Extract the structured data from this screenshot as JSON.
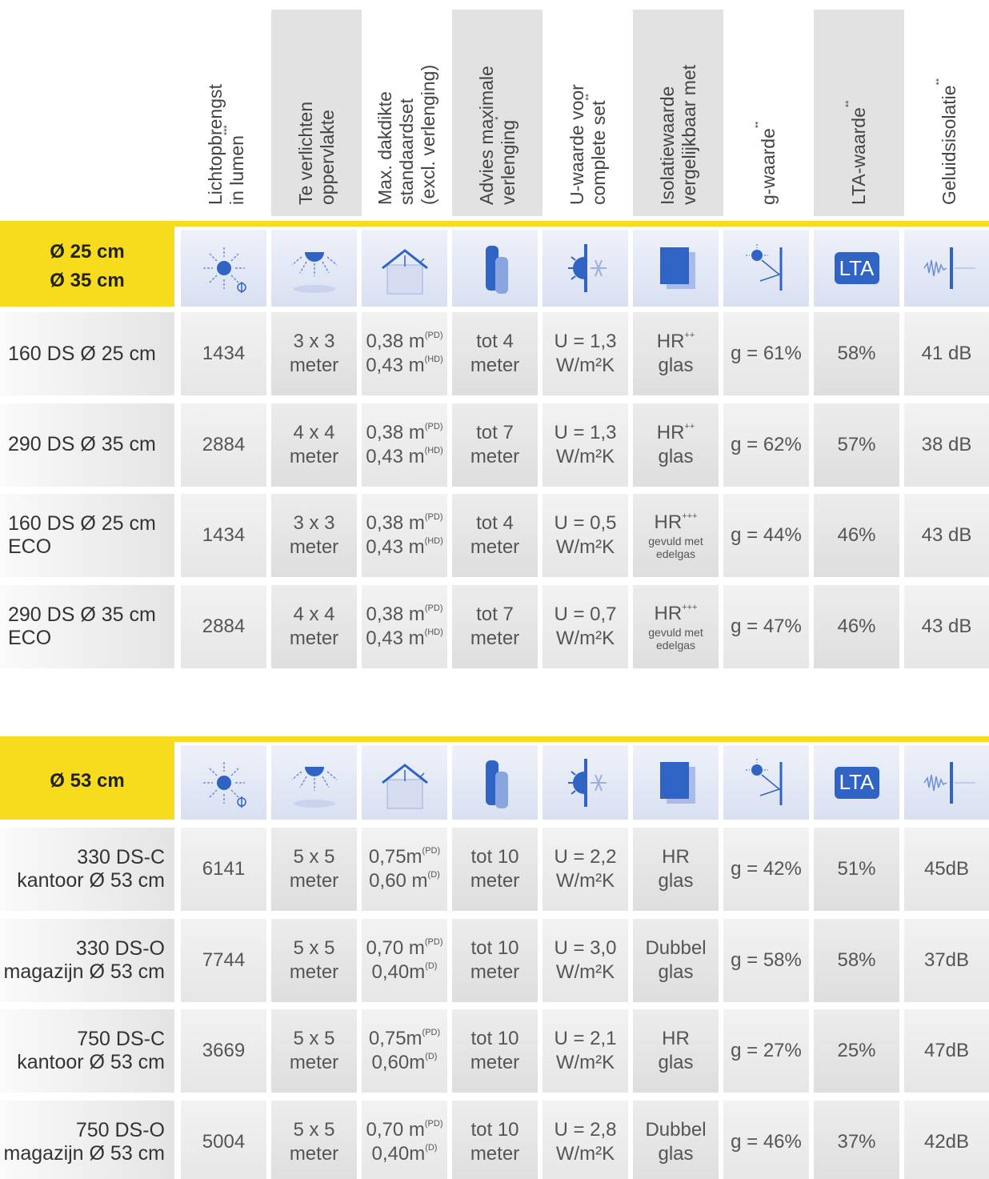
{
  "header": {
    "columns": [
      {
        "lines": [
          "Lichtopbrengst",
          "in lumen"
        ],
        "sup": "***"
      },
      {
        "lines": [
          "Te verlichten",
          "oppervlakte"
        ]
      },
      {
        "lines": [
          "Max. dakdikte",
          "standaardset",
          "(excl. verlenging)"
        ]
      },
      {
        "lines": [
          "Advies maximale",
          "verlenging"
        ],
        "sup": "*"
      },
      {
        "lines": [
          "U-waarde voor",
          "complete set"
        ],
        "sup": "**"
      },
      {
        "lines": [
          "Isolatiewaarde",
          "vergelijkbaar met"
        ]
      },
      {
        "lines": [
          "g-waarde"
        ],
        "sup": "**"
      },
      {
        "lines": [
          "LTA-waarde"
        ],
        "sup": "**"
      },
      {
        "lines": [
          "Geluidsisolatie"
        ],
        "sup": "**"
      }
    ]
  },
  "icon_label": "LTA",
  "groups": [
    {
      "label": [
        "Ø 25 cm",
        "Ø 35 cm"
      ],
      "rows": [
        {
          "name": [
            "160 DS Ø 25 cm"
          ],
          "cells": [
            [
              "1434"
            ],
            [
              "3 x 3",
              "meter"
            ],
            [
              {
                "text": "0,38 m",
                "sup": "(PD)"
              },
              {
                "text": "0,43 m",
                "sup": "(HD)"
              }
            ],
            [
              "tot 4",
              "meter"
            ],
            [
              "U = 1,3",
              "W/m²K"
            ],
            [
              {
                "text": "HR",
                "sup": "++"
              },
              "glas"
            ],
            [
              "g = 61%"
            ],
            [
              "58%"
            ],
            [
              "41 dB"
            ]
          ]
        },
        {
          "name": [
            "290 DS Ø 35 cm"
          ],
          "cells": [
            [
              "2884"
            ],
            [
              "4 x 4",
              "meter"
            ],
            [
              {
                "text": "0,38 m",
                "sup": "(PD)"
              },
              {
                "text": "0,43 m",
                "sup": "(HD)"
              }
            ],
            [
              "tot 7",
              "meter"
            ],
            [
              "U = 1,3",
              "W/m²K"
            ],
            [
              {
                "text": "HR",
                "sup": "++"
              },
              "glas"
            ],
            [
              "g = 62%"
            ],
            [
              "57%"
            ],
            [
              "38 dB"
            ]
          ]
        },
        {
          "name": [
            "160 DS Ø 25 cm",
            "ECO"
          ],
          "cells": [
            [
              "1434"
            ],
            [
              "3 x 3",
              "meter"
            ],
            [
              {
                "text": "0,38 m",
                "sup": "(PD)"
              },
              {
                "text": "0,43 m",
                "sup": "(HD)"
              }
            ],
            [
              "tot 4",
              "meter"
            ],
            [
              "U = 0,5",
              "W/m²K"
            ],
            {
              "lines": [
                {
                  "text": "HR",
                  "sup": "+++"
                }
              ],
              "note": [
                "gevuld met",
                "edelgas"
              ]
            },
            [
              "g = 44%"
            ],
            [
              "46%"
            ],
            [
              "43 dB"
            ]
          ]
        },
        {
          "name": [
            "290 DS Ø 35 cm",
            "ECO"
          ],
          "cells": [
            [
              "2884"
            ],
            [
              "4 x 4",
              "meter"
            ],
            [
              {
                "text": "0,38 m",
                "sup": "(PD)"
              },
              {
                "text": "0,43 m",
                "sup": "(HD)"
              }
            ],
            [
              "tot 7",
              "meter"
            ],
            [
              "U = 0,7",
              "W/m²K"
            ],
            {
              "lines": [
                {
                  "text": "HR",
                  "sup": "+++"
                }
              ],
              "note": [
                "gevuld met",
                "edelgas"
              ]
            },
            [
              "g = 47%"
            ],
            [
              "46%"
            ],
            [
              "43 dB"
            ]
          ]
        }
      ]
    },
    {
      "label": [
        "Ø 53 cm"
      ],
      "rows": [
        {
          "name": [
            "330 DS-C",
            "kantoor Ø 53 cm"
          ],
          "cells": [
            [
              "6141"
            ],
            [
              "5 x 5",
              "meter"
            ],
            [
              {
                "text": "0,75m",
                "sup": "(PD)"
              },
              {
                "text": "0,60 m",
                "sup": "(D)"
              }
            ],
            [
              "tot 10",
              "meter"
            ],
            [
              "U = 2,2",
              "W/m²K"
            ],
            [
              "HR",
              "glas"
            ],
            [
              "g = 42%"
            ],
            [
              "51%"
            ],
            [
              "45dB"
            ]
          ]
        },
        {
          "name": [
            "330 DS-O",
            "magazijn Ø 53 cm"
          ],
          "cells": [
            [
              "7744"
            ],
            [
              "5 x 5",
              "meter"
            ],
            [
              {
                "text": "0,70 m",
                "sup": "(PD)"
              },
              {
                "text": "0,40m",
                "sup": "(D)"
              }
            ],
            [
              "tot 10",
              "meter"
            ],
            [
              "U = 3,0",
              "W/m²K"
            ],
            [
              "Dubbel",
              "glas"
            ],
            [
              "g = 58%"
            ],
            [
              "58%"
            ],
            [
              "37dB"
            ]
          ]
        },
        {
          "name": [
            "750 DS-C",
            "kantoor Ø 53 cm"
          ],
          "cells": [
            [
              "3669"
            ],
            [
              "5 x 5",
              "meter"
            ],
            [
              {
                "text": "0,75m",
                "sup": "(PD)"
              },
              {
                "text": "0,60m",
                "sup": "(D)"
              }
            ],
            [
              "tot 10",
              "meter"
            ],
            [
              "U = 2,1",
              "W/m²K"
            ],
            [
              "HR",
              "glas"
            ],
            [
              "g = 27%"
            ],
            [
              "25%"
            ],
            [
              "47dB"
            ]
          ]
        },
        {
          "name": [
            "750 DS-O",
            "magazijn Ø 53 cm"
          ],
          "cells": [
            [
              "5004"
            ],
            [
              "5 x 5",
              "meter"
            ],
            [
              {
                "text": "0,70 m",
                "sup": "(PD)"
              },
              {
                "text": "0,40m",
                "sup": "(D)"
              }
            ],
            [
              "tot 10",
              "meter"
            ],
            [
              "U = 2,8",
              "W/m²K"
            ],
            [
              "Dubbel",
              "glas"
            ],
            [
              "g = 46%"
            ],
            [
              "37%"
            ],
            [
              "42dB"
            ]
          ]
        }
      ]
    }
  ]
}
